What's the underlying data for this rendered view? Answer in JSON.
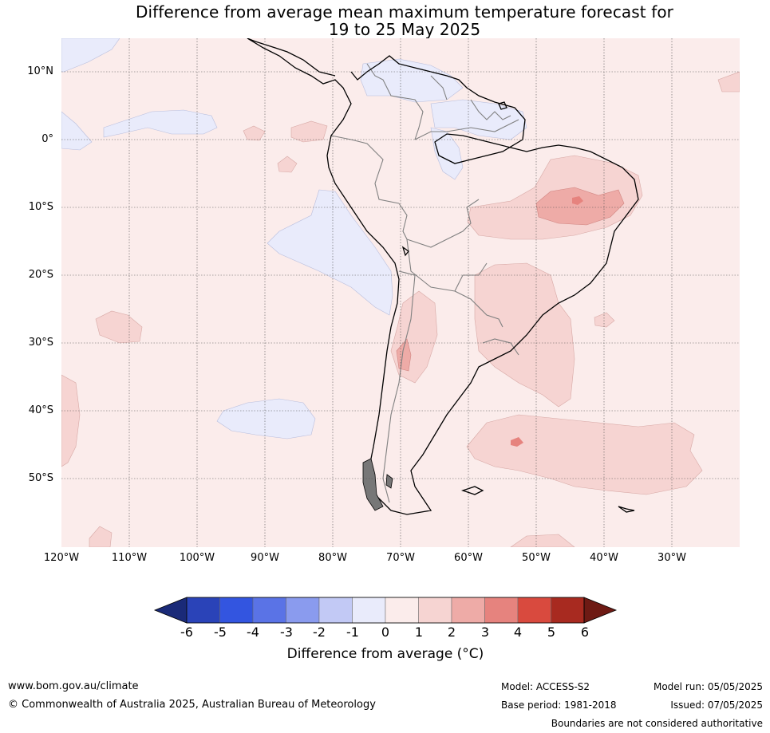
{
  "title": {
    "line1": "Difference from average mean maximum temperature forecast for",
    "line2": "19 to 25 May 2025"
  },
  "map": {
    "lat_ticks": [
      "10°N",
      "0°",
      "10°S",
      "20°S",
      "30°S",
      "40°S",
      "50°S"
    ],
    "lon_ticks": [
      "120°W",
      "110°W",
      "100°W",
      "90°W",
      "80°W",
      "70°W",
      "60°W",
      "50°W",
      "40°W",
      "30°W"
    ],
    "background_color": "#fbeceb",
    "land_color": "#fbeceb"
  },
  "colorbar": {
    "labels": [
      "-6",
      "-5",
      "-4",
      "-3",
      "-2",
      "-1",
      "0",
      "1",
      "2",
      "3",
      "4",
      "5",
      "6"
    ],
    "colors": [
      "#1a2a78",
      "#2a43b8",
      "#3355e0",
      "#5a73e6",
      "#8a9bee",
      "#c2c9f5",
      "#e9ebfb",
      "#fbeceb",
      "#f6d4d2",
      "#eeaba7",
      "#e6837e",
      "#d94a3e",
      "#a82a20",
      "#6e1a14"
    ],
    "title": "Difference from average (°C)"
  },
  "footer": {
    "website": "www.bom.gov.au/climate",
    "copyright": "© Commonwealth of Australia 2025, Australian Bureau of Meteorology",
    "model": "Model: ACCESS-S2",
    "base_period": "Base period: 1981-2018",
    "model_run": "Model run: 05/05/2025",
    "issued": "Issued: 07/05/2025",
    "disclaimer": "Boundaries are not considered authoritative"
  }
}
